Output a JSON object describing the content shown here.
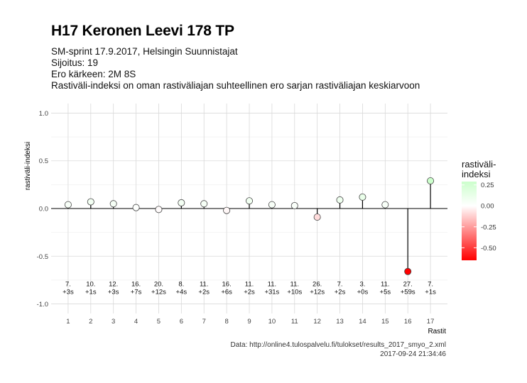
{
  "header": {
    "title": "H17 Keronen Leevi 178 TP",
    "subtitle_lines": [
      "SM-sprint 17.9.2017, Helsingin Suunnistajat",
      "Sijoitus: 19",
      "Ero kärkeen: 2M 8S",
      "Rastiväli-indeksi on oman rastiväliajan suhteellinen ero sarjan rastiväliajan keskiarvoon"
    ]
  },
  "caption": {
    "source": "Data: http://online4.tulospalvelu.fi/tulokset/results_2017_smyo_2.xml",
    "timestamp": "2017-09-24 21:34:46"
  },
  "legend": {
    "title_line1": "rastiväli-",
    "title_line2": "indeksi",
    "ticks": [
      0.25,
      0.0,
      -0.25,
      -0.5
    ],
    "tick_labels": [
      "0.25",
      "0.00",
      "-0.25",
      "-0.50"
    ],
    "range": [
      -0.65,
      0.29
    ]
  },
  "colors": {
    "positive": "#ccffcc",
    "zero": "#ffffff",
    "negative": "#ff0000"
  },
  "chart_data": {
    "type": "scatter",
    "title": "H17 Keronen Leevi 178 TP",
    "xlabel": "Rastit",
    "ylabel": "rastiväli-indeksi",
    "ylim": [
      -1.0,
      1.0
    ],
    "yticks": [
      1.0,
      0.5,
      0.0,
      -0.5,
      -1.0
    ],
    "ytick_labels": [
      "1.0",
      "0.5",
      "0.0",
      "-0.5",
      "-1.0"
    ],
    "x": [
      1,
      2,
      3,
      4,
      5,
      6,
      7,
      8,
      9,
      10,
      11,
      12,
      13,
      14,
      15,
      16,
      17
    ],
    "xtick_labels": [
      "1",
      "2",
      "3",
      "4",
      "5",
      "6",
      "7",
      "8",
      "9",
      "10",
      "11",
      "12",
      "13",
      "14",
      "15",
      "16",
      "17"
    ],
    "values": [
      0.04,
      0.07,
      0.05,
      0.01,
      -0.01,
      0.06,
      0.05,
      -0.02,
      0.08,
      0.04,
      0.03,
      -0.09,
      0.09,
      0.12,
      0.04,
      -0.66,
      0.29
    ],
    "rank_labels": [
      "7.",
      "10.",
      "12.",
      "16.",
      "20.",
      "8.",
      "11.",
      "16.",
      "11.",
      "11.",
      "11.",
      "26.",
      "7.",
      "3.",
      "11.",
      "27.",
      "7."
    ],
    "diff_labels": [
      "+3s",
      "+1s",
      "+3s",
      "+7s",
      "+12s",
      "+4s",
      "+2s",
      "+6s",
      "+2s",
      "+31s",
      "+10s",
      "+12s",
      "+2s",
      "+0s",
      "+5s",
      "+59s",
      "+1s"
    ],
    "grid": true,
    "legend_position": "right"
  }
}
